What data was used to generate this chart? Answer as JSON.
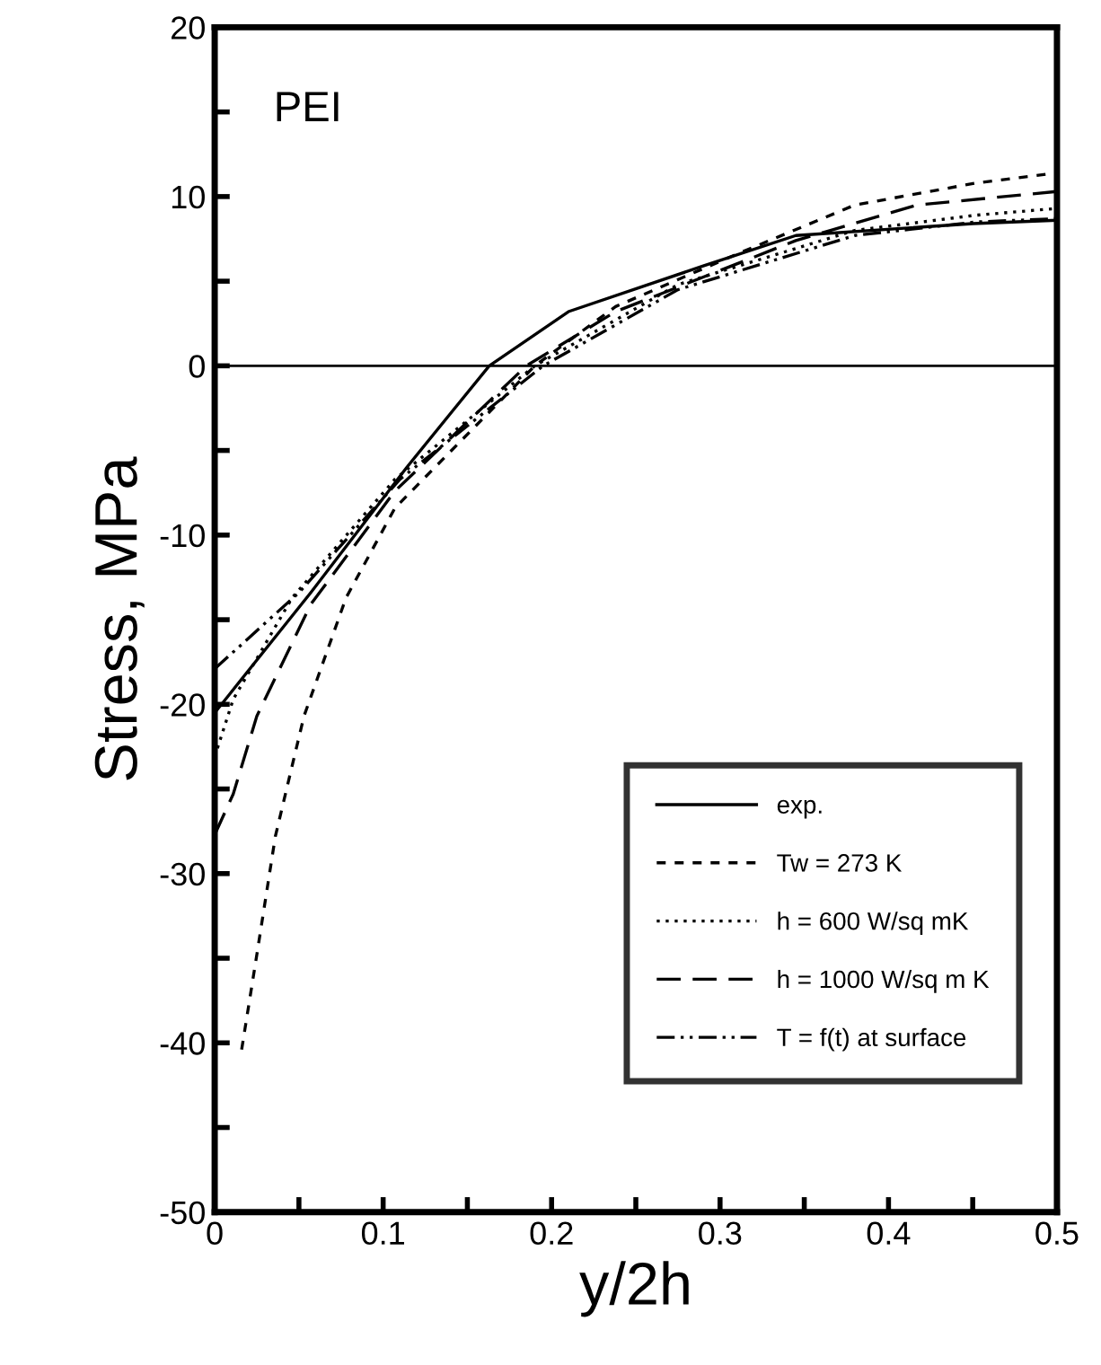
{
  "chart_data": {
    "type": "line",
    "xlabel": "y/2h",
    "ylabel": "Stress, MPa",
    "annotations": [
      "PEI"
    ],
    "xlim": [
      0,
      0.5
    ],
    "ylim": [
      -50,
      20
    ],
    "xticks": [
      0,
      {
        "value": 0.05,
        "label": null
      },
      0.1,
      {
        "value": 0.15,
        "label": null
      },
      0.2,
      {
        "value": 0.25,
        "label": null
      },
      0.3,
      {
        "value": 0.35,
        "label": null
      },
      0.4,
      {
        "value": 0.45,
        "label": null
      },
      0.5
    ],
    "yticks": [
      -50,
      {
        "value": -45,
        "label": null
      },
      -40,
      {
        "value": -35,
        "label": null
      },
      -30,
      {
        "value": -25,
        "label": null
      },
      -20,
      {
        "value": -15,
        "label": null
      },
      -10,
      {
        "value": -5,
        "label": null
      },
      0,
      {
        "value": 5,
        "label": null
      },
      10,
      {
        "value": 15,
        "label": null
      },
      20
    ],
    "ref_lines": [
      {
        "axis": "y",
        "value": 0,
        "color": "#000000",
        "line_style": "solid"
      }
    ],
    "grid": false,
    "legend": "lower right",
    "series": [
      {
        "name": "exp.",
        "color": "#000000",
        "line_style": "solid",
        "x": [
          0,
          0.057,
          0.114,
          0.163,
          0.21,
          0.29,
          0.345,
          0.45,
          0.5
        ],
        "values": [
          -20.5,
          -13.4,
          -6,
          0,
          3.2,
          5.9,
          7.7,
          8.4,
          8.6
        ]
      },
      {
        "name": "Tw = 273 K",
        "color": "#000000",
        "line_style": "dashed",
        "x": [
          0.016,
          0.025,
          0.036,
          0.053,
          0.078,
          0.107,
          0.19,
          0.238,
          0.31,
          0.38,
          0.452,
          0.5
        ],
        "values": [
          -40.4,
          -34.8,
          -27.8,
          -20.7,
          -13.7,
          -8.4,
          0,
          3.5,
          6.6,
          9.5,
          10.8,
          11.4
        ]
      },
      {
        "name": "h = 600 W/sq mK",
        "color": "#000000",
        "line_style": "dotted",
        "x": [
          0,
          0.011,
          0.046,
          0.107,
          0.19,
          0.275,
          0.38,
          0.452,
          0.5
        ],
        "values": [
          -23.1,
          -19.7,
          -13.7,
          -6.7,
          0,
          4.8,
          8,
          8.9,
          9.3
        ]
      },
      {
        "name": "h = 1000 W/sq m K",
        "color": "#000000",
        "line_style": "longdash",
        "x": [
          0,
          0.011,
          0.025,
          0.057,
          0.107,
          0.185,
          0.238,
          0.345,
          0.417,
          0.5
        ],
        "values": [
          -27.7,
          -25.3,
          -20.7,
          -14.1,
          -7.4,
          0,
          3.2,
          7.4,
          9.5,
          10.3
        ]
      },
      {
        "name": "T = f(t) at surface",
        "color": "#000000",
        "line_style": "dashdotdot",
        "x": [
          0,
          0.05,
          0.11,
          0.195,
          0.275,
          0.38,
          0.452,
          0.5
        ],
        "values": [
          -17.9,
          -13.4,
          -6.7,
          0,
          4.5,
          7.7,
          8.5,
          8.7
        ]
      }
    ]
  }
}
